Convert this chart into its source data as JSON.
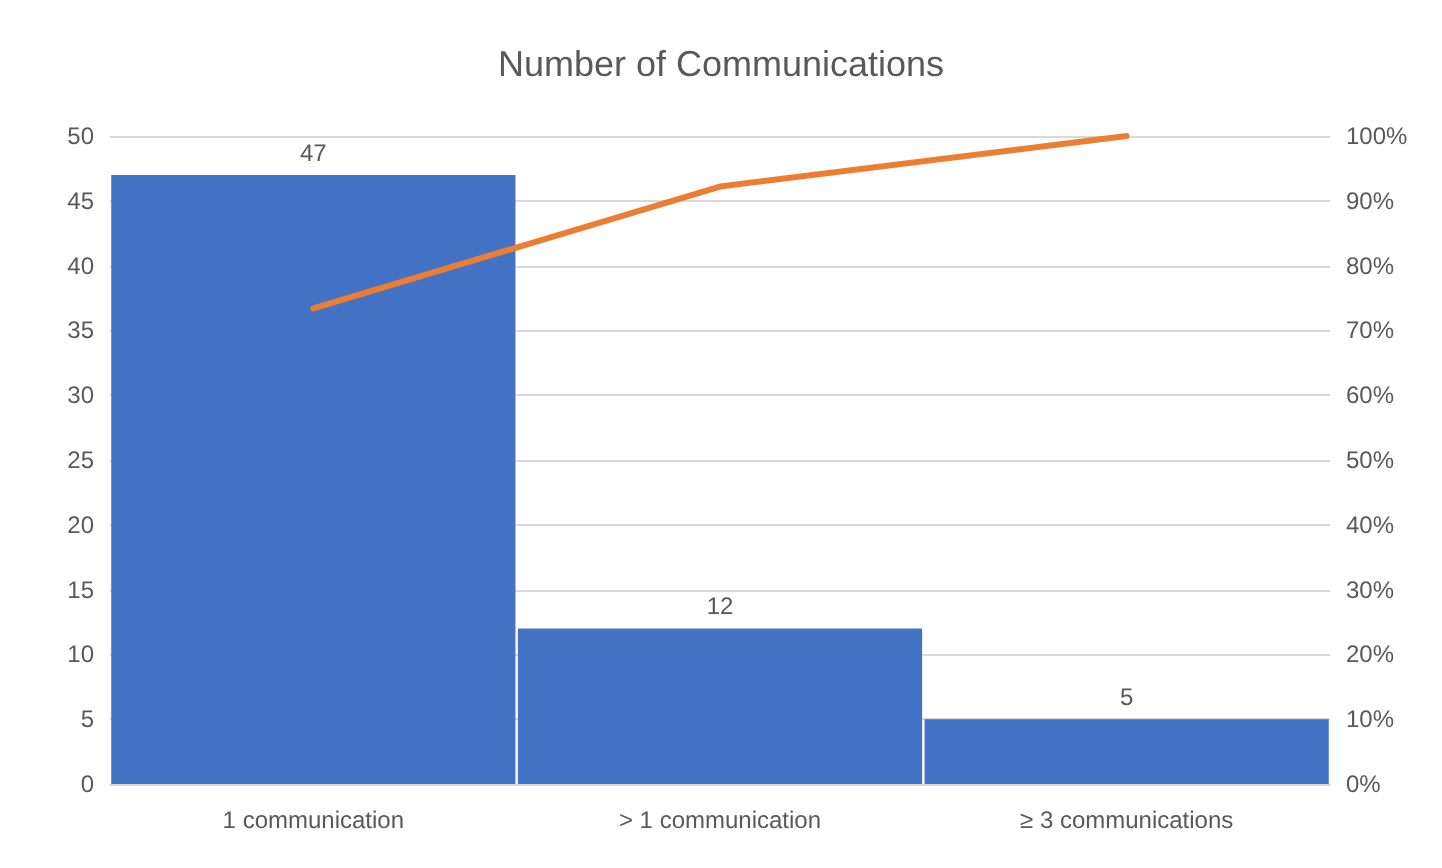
{
  "chart_data": {
    "type": "bar",
    "title": "Number of Communications",
    "categories": [
      "1 communication",
      "> 1 communication",
      "≥ 3 communications"
    ],
    "series": [
      {
        "color": "#4472c4",
        "values": [
          47,
          12,
          5
        ],
        "data_labels": true
      },
      {
        "type": "line",
        "axis": "y2",
        "color": "#ed7d31",
        "values": [
          73.4,
          92.2,
          100
        ],
        "marker": "none"
      }
    ],
    "ylim": [
      0,
      50
    ],
    "yticks": [
      0,
      5,
      10,
      15,
      20,
      25,
      30,
      35,
      40,
      45,
      50
    ],
    "y2lim": [
      0,
      100
    ],
    "y2ticks": [
      {
        "value": 0,
        "label": "0%"
      },
      {
        "value": 10,
        "label": "10%"
      },
      {
        "value": 20,
        "label": "20%"
      },
      {
        "value": 30,
        "label": "30%"
      },
      {
        "value": 40,
        "label": "40%"
      },
      {
        "value": 50,
        "label": "50%"
      },
      {
        "value": 60,
        "label": "60%"
      },
      {
        "value": 70,
        "label": "70%"
      },
      {
        "value": 80,
        "label": "80%"
      },
      {
        "value": 90,
        "label": "90%"
      },
      {
        "value": 100,
        "label": "100%"
      }
    ],
    "grid": "y"
  }
}
